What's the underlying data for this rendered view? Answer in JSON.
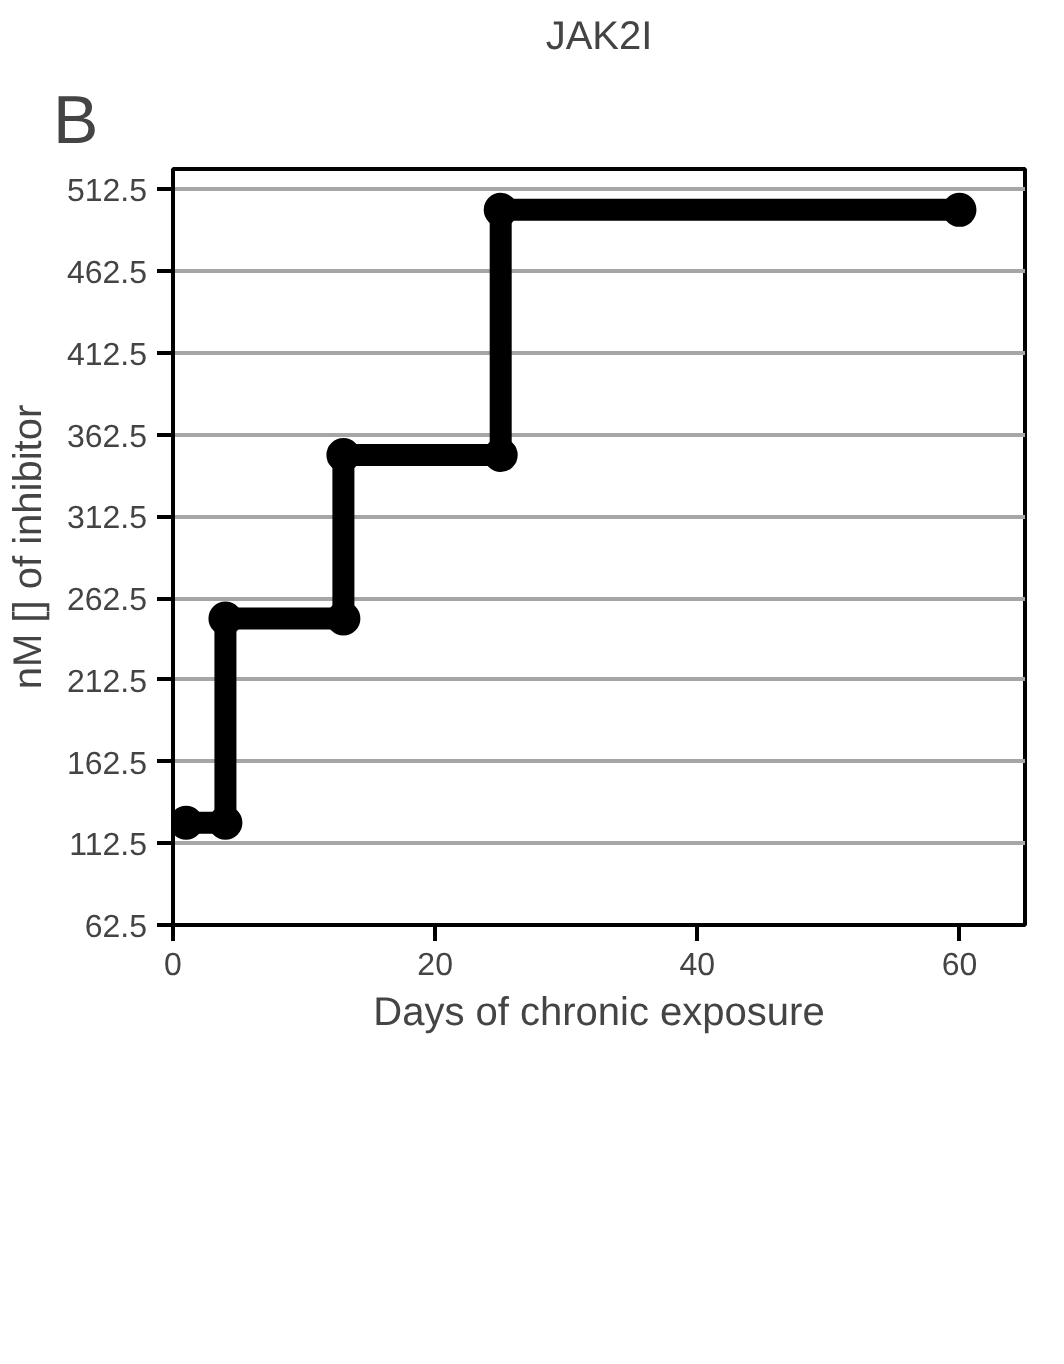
{
  "chart_data": {
    "type": "line",
    "title": "JAK2I",
    "xlabel": "Days of chronic exposure",
    "ylabel": "nM [] of inhibitor",
    "x": [
      1,
      4,
      4,
      13,
      13,
      25,
      25,
      60
    ],
    "series": [
      {
        "color": "#000000",
        "values": [
          125,
          125,
          250,
          250,
          350,
          350,
          500,
          500
        ]
      }
    ],
    "xlim": [
      0,
      65
    ],
    "xticks": [
      0,
      20,
      40,
      60
    ],
    "ylim": [
      62.5,
      525
    ],
    "yticks": [
      512.5,
      462.5,
      412.5,
      362.5,
      312.5,
      262.5,
      212.5,
      162.5,
      112.5,
      62.5
    ],
    "grid": "y",
    "marker": "circle",
    "line_style": "solid",
    "annotations": [
      "B"
    ]
  }
}
